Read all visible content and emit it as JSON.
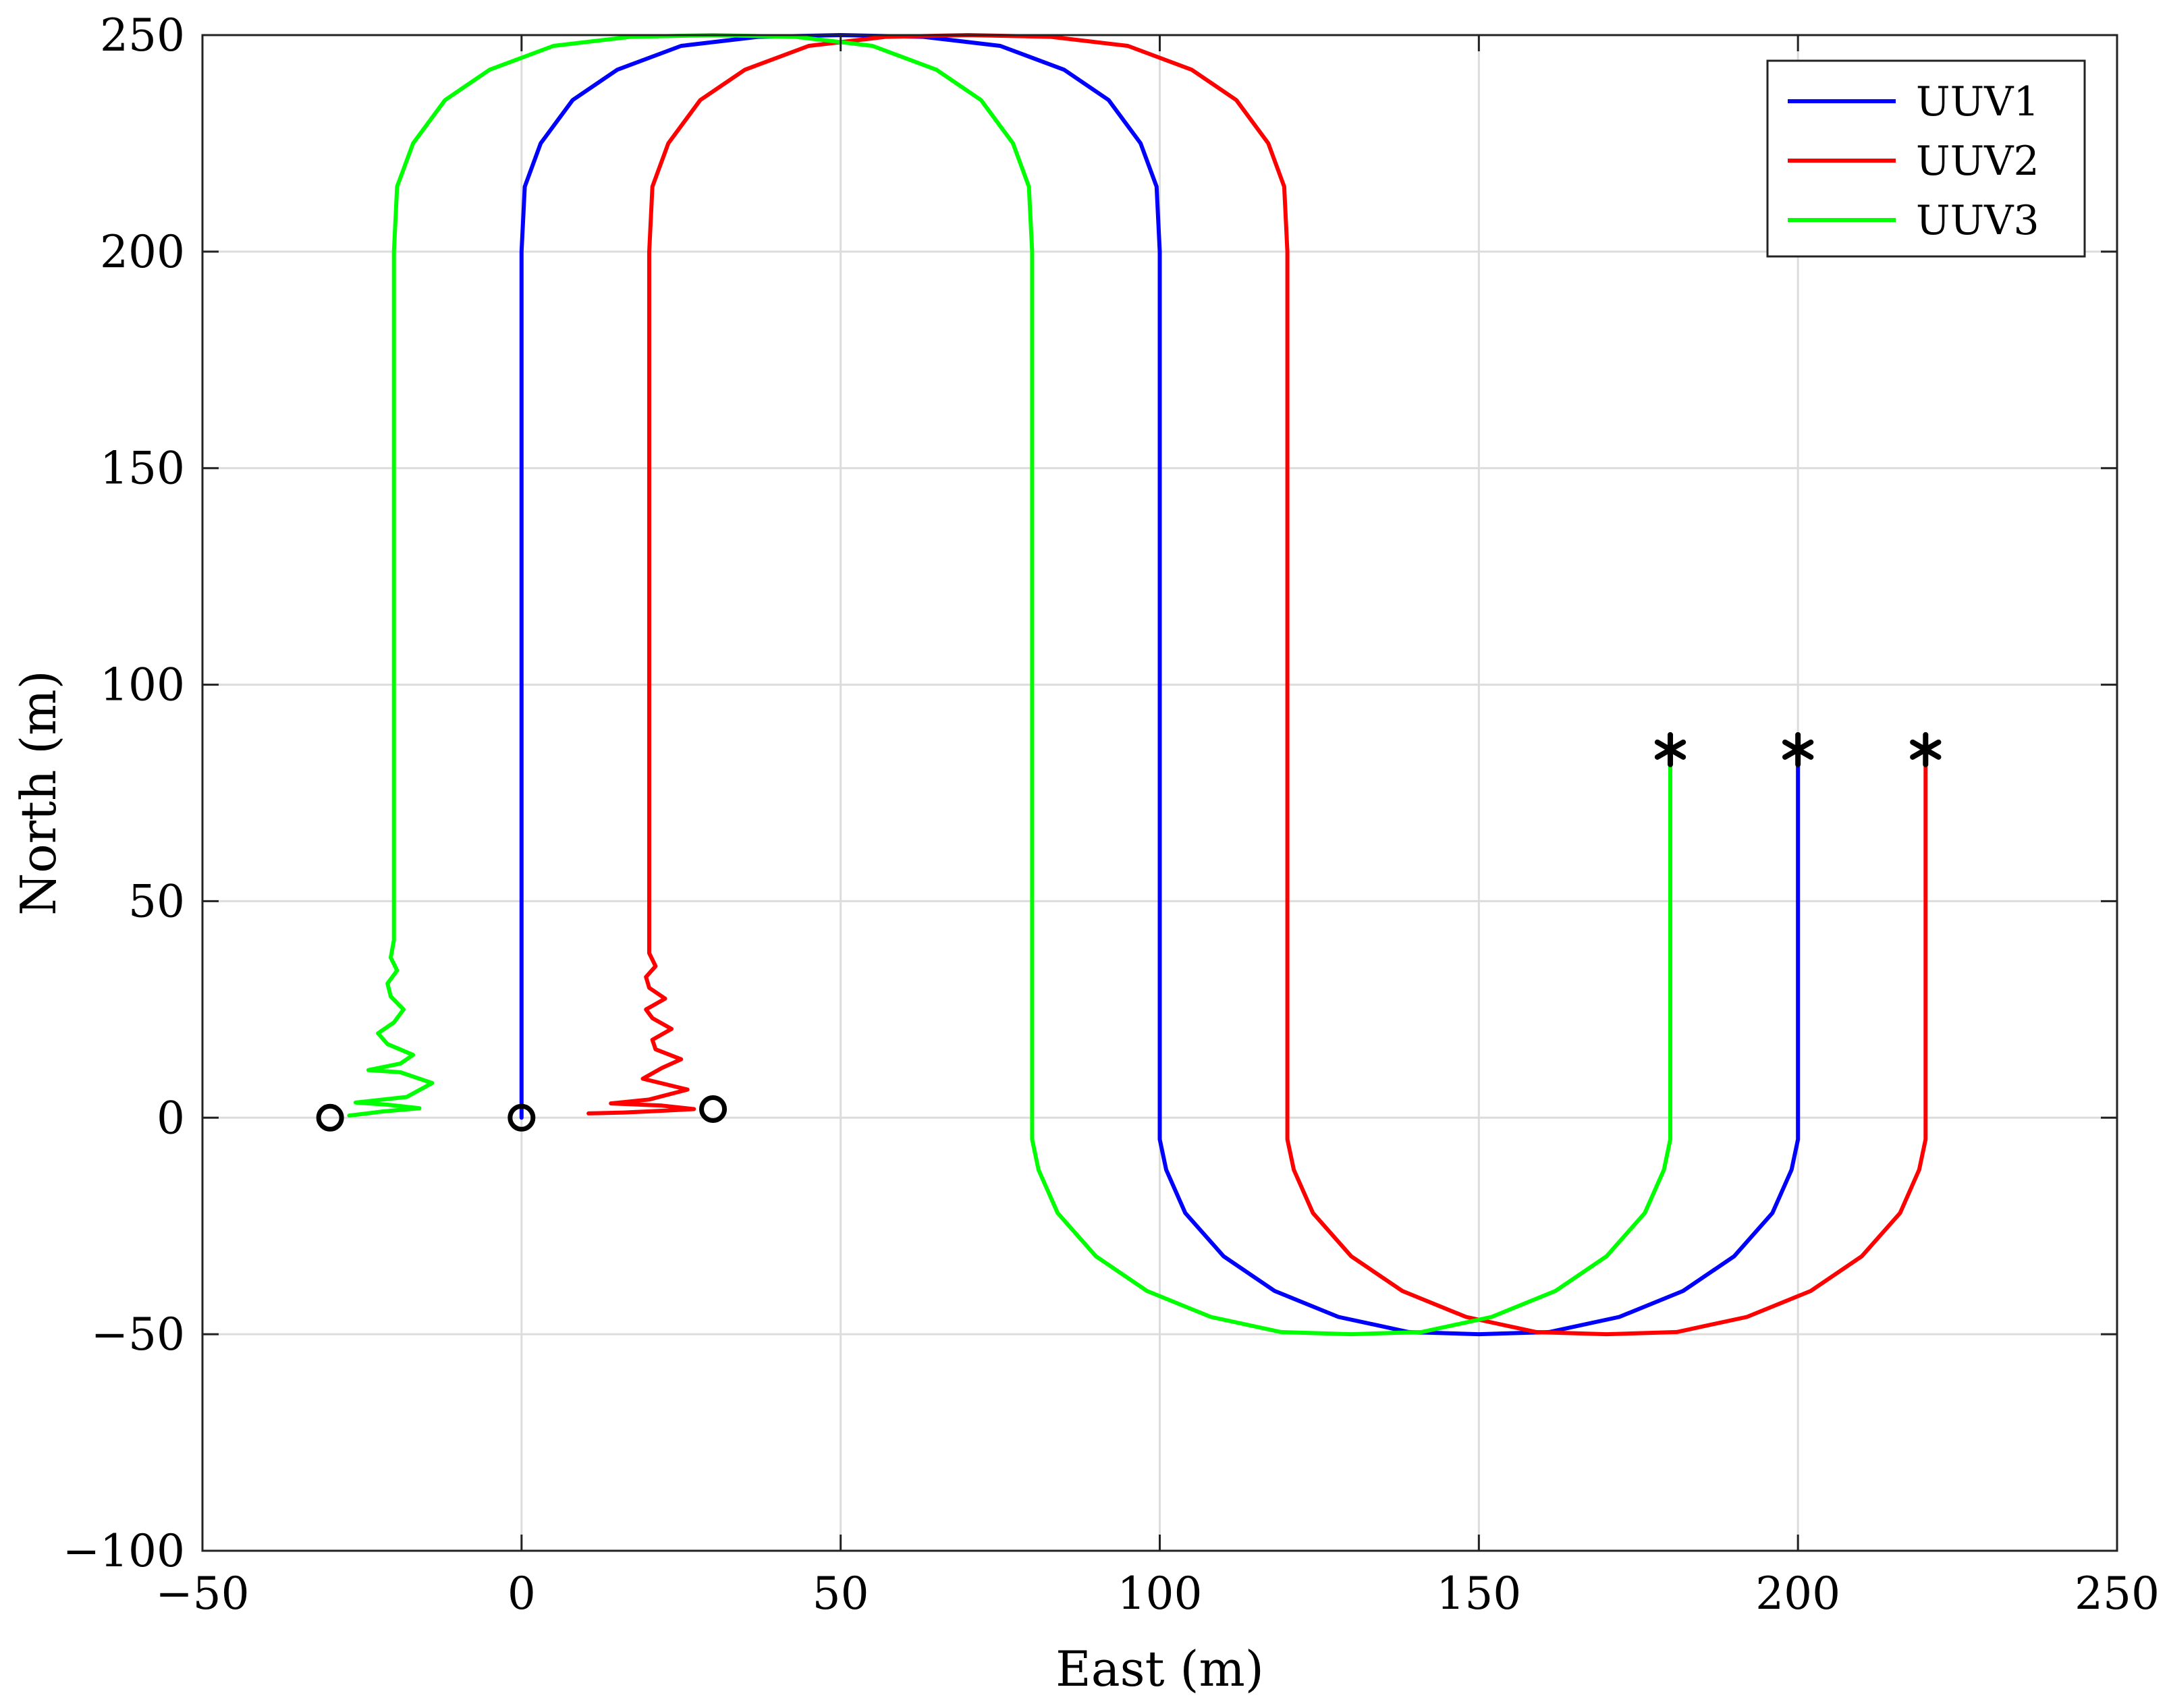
{
  "chart_data": {
    "type": "line",
    "xlabel": "East (m)",
    "ylabel": "North (m)",
    "xlim": [
      -50,
      250
    ],
    "ylim": [
      -100,
      250
    ],
    "xticks": [
      -50,
      0,
      50,
      100,
      150,
      200,
      250
    ],
    "yticks": [
      -100,
      -50,
      0,
      50,
      100,
      150,
      200,
      250
    ],
    "xtick_labels": [
      "−50",
      "0",
      "50",
      "100",
      "150",
      "200",
      "250"
    ],
    "ytick_labels": [
      "−100",
      "−50",
      "0",
      "50",
      "100",
      "150",
      "200",
      "250"
    ],
    "grid": true,
    "legend_position": "top-right",
    "series": [
      {
        "name": "UUV1",
        "color": "#0000ff",
        "points": [
          [
            0,
            0
          ],
          [
            0,
            50
          ],
          [
            0,
            100
          ],
          [
            0,
            150
          ],
          [
            0,
            200
          ],
          [
            0.5,
            215
          ],
          [
            3,
            225
          ],
          [
            8,
            235
          ],
          [
            15,
            242
          ],
          [
            25,
            247.5
          ],
          [
            37,
            249.6
          ],
          [
            50,
            250
          ],
          [
            63,
            249.6
          ],
          [
            75,
            247.5
          ],
          [
            85,
            242
          ],
          [
            92,
            235
          ],
          [
            97,
            225
          ],
          [
            99.5,
            215
          ],
          [
            100,
            200
          ],
          [
            100,
            150
          ],
          [
            100,
            100
          ],
          [
            100,
            50
          ],
          [
            100,
            0
          ],
          [
            100,
            -5
          ],
          [
            101,
            -12
          ],
          [
            104,
            -22
          ],
          [
            110,
            -32
          ],
          [
            118,
            -40
          ],
          [
            128,
            -46
          ],
          [
            139,
            -49.5
          ],
          [
            150,
            -50
          ],
          [
            161,
            -49.5
          ],
          [
            172,
            -46
          ],
          [
            182,
            -40
          ],
          [
            190,
            -32
          ],
          [
            196,
            -22
          ],
          [
            199,
            -12
          ],
          [
            200,
            -5
          ],
          [
            200,
            0
          ],
          [
            200,
            40
          ],
          [
            200,
            85
          ]
        ]
      },
      {
        "name": "UUV2",
        "color": "#ff0000",
        "points": [
          [
            10.5,
            1
          ],
          [
            16,
            1.2
          ],
          [
            22,
            1.6
          ],
          [
            27,
            2
          ],
          [
            22,
            2.8
          ],
          [
            14,
            3.3
          ],
          [
            20,
            4.2
          ],
          [
            26,
            6.5
          ],
          [
            19,
            9
          ],
          [
            22,
            11.5
          ],
          [
            25,
            13.5
          ],
          [
            21,
            15.8
          ],
          [
            20.5,
            18
          ],
          [
            23.5,
            20.5
          ],
          [
            20.5,
            23
          ],
          [
            19.5,
            25
          ],
          [
            22.5,
            27.5
          ],
          [
            20,
            30
          ],
          [
            19.5,
            32.5
          ],
          [
            21,
            35
          ],
          [
            20,
            38
          ],
          [
            20,
            42
          ],
          [
            20,
            50
          ],
          [
            20,
            100
          ],
          [
            20,
            150
          ],
          [
            20,
            200
          ],
          [
            20.5,
            215
          ],
          [
            23,
            225
          ],
          [
            28,
            235
          ],
          [
            35,
            242
          ],
          [
            45,
            247.5
          ],
          [
            57,
            249.6
          ],
          [
            70,
            250
          ],
          [
            83,
            249.6
          ],
          [
            95,
            247.5
          ],
          [
            105,
            242
          ],
          [
            112,
            235
          ],
          [
            117,
            225
          ],
          [
            119.5,
            215
          ],
          [
            120,
            200
          ],
          [
            120,
            150
          ],
          [
            120,
            100
          ],
          [
            120,
            50
          ],
          [
            120,
            0
          ],
          [
            120,
            -5
          ],
          [
            121,
            -12
          ],
          [
            124,
            -22
          ],
          [
            130,
            -32
          ],
          [
            138,
            -40
          ],
          [
            148,
            -46
          ],
          [
            159,
            -49.5
          ],
          [
            170,
            -50
          ],
          [
            181,
            -49.5
          ],
          [
            192,
            -46
          ],
          [
            202,
            -40
          ],
          [
            210,
            -32
          ],
          [
            216,
            -22
          ],
          [
            219,
            -12
          ],
          [
            220,
            -5
          ],
          [
            220,
            0
          ],
          [
            220,
            40
          ],
          [
            220,
            85
          ]
        ]
      },
      {
        "name": "UUV3",
        "color": "#00ff00",
        "points": [
          [
            -27,
            0.5
          ],
          [
            -22,
            1.4
          ],
          [
            -16,
            2.2
          ],
          [
            -21,
            3
          ],
          [
            -26,
            3.5
          ],
          [
            -18,
            4.8
          ],
          [
            -14,
            8
          ],
          [
            -19,
            10.5
          ],
          [
            -24,
            11
          ],
          [
            -19,
            12.5
          ],
          [
            -17,
            14.5
          ],
          [
            -21,
            17
          ],
          [
            -22.5,
            19.5
          ],
          [
            -20,
            22
          ],
          [
            -18.5,
            25
          ],
          [
            -20.5,
            28
          ],
          [
            -21,
            31
          ],
          [
            -19.5,
            34
          ],
          [
            -20.5,
            37
          ],
          [
            -20,
            41
          ],
          [
            -20,
            45
          ],
          [
            -20,
            50
          ],
          [
            -20,
            100
          ],
          [
            -20,
            150
          ],
          [
            -20,
            200
          ],
          [
            -19.5,
            215
          ],
          [
            -17,
            225
          ],
          [
            -12,
            235
          ],
          [
            -5,
            242
          ],
          [
            5,
            247.5
          ],
          [
            17,
            249.6
          ],
          [
            30,
            250
          ],
          [
            43,
            249.6
          ],
          [
            55,
            247.5
          ],
          [
            65,
            242
          ],
          [
            72,
            235
          ],
          [
            77,
            225
          ],
          [
            79.5,
            215
          ],
          [
            80,
            200
          ],
          [
            80,
            150
          ],
          [
            80,
            100
          ],
          [
            80,
            50
          ],
          [
            80,
            0
          ],
          [
            80,
            -5
          ],
          [
            81,
            -12
          ],
          [
            84,
            -22
          ],
          [
            90,
            -32
          ],
          [
            98,
            -40
          ],
          [
            108,
            -46
          ],
          [
            119,
            -49.5
          ],
          [
            130,
            -50
          ],
          [
            141,
            -49.5
          ],
          [
            152,
            -46
          ],
          [
            162,
            -40
          ],
          [
            170,
            -32
          ],
          [
            176,
            -22
          ],
          [
            179,
            -12
          ],
          [
            180,
            -5
          ],
          [
            180,
            0
          ],
          [
            180,
            40
          ],
          [
            180,
            85
          ]
        ]
      }
    ],
    "start_markers": [
      [
        -30,
        0
      ],
      [
        0,
        0
      ],
      [
        30,
        2
      ]
    ],
    "end_markers": [
      [
        180,
        85
      ],
      [
        200,
        85
      ],
      [
        220,
        85
      ]
    ],
    "marker_color": "#000000"
  }
}
